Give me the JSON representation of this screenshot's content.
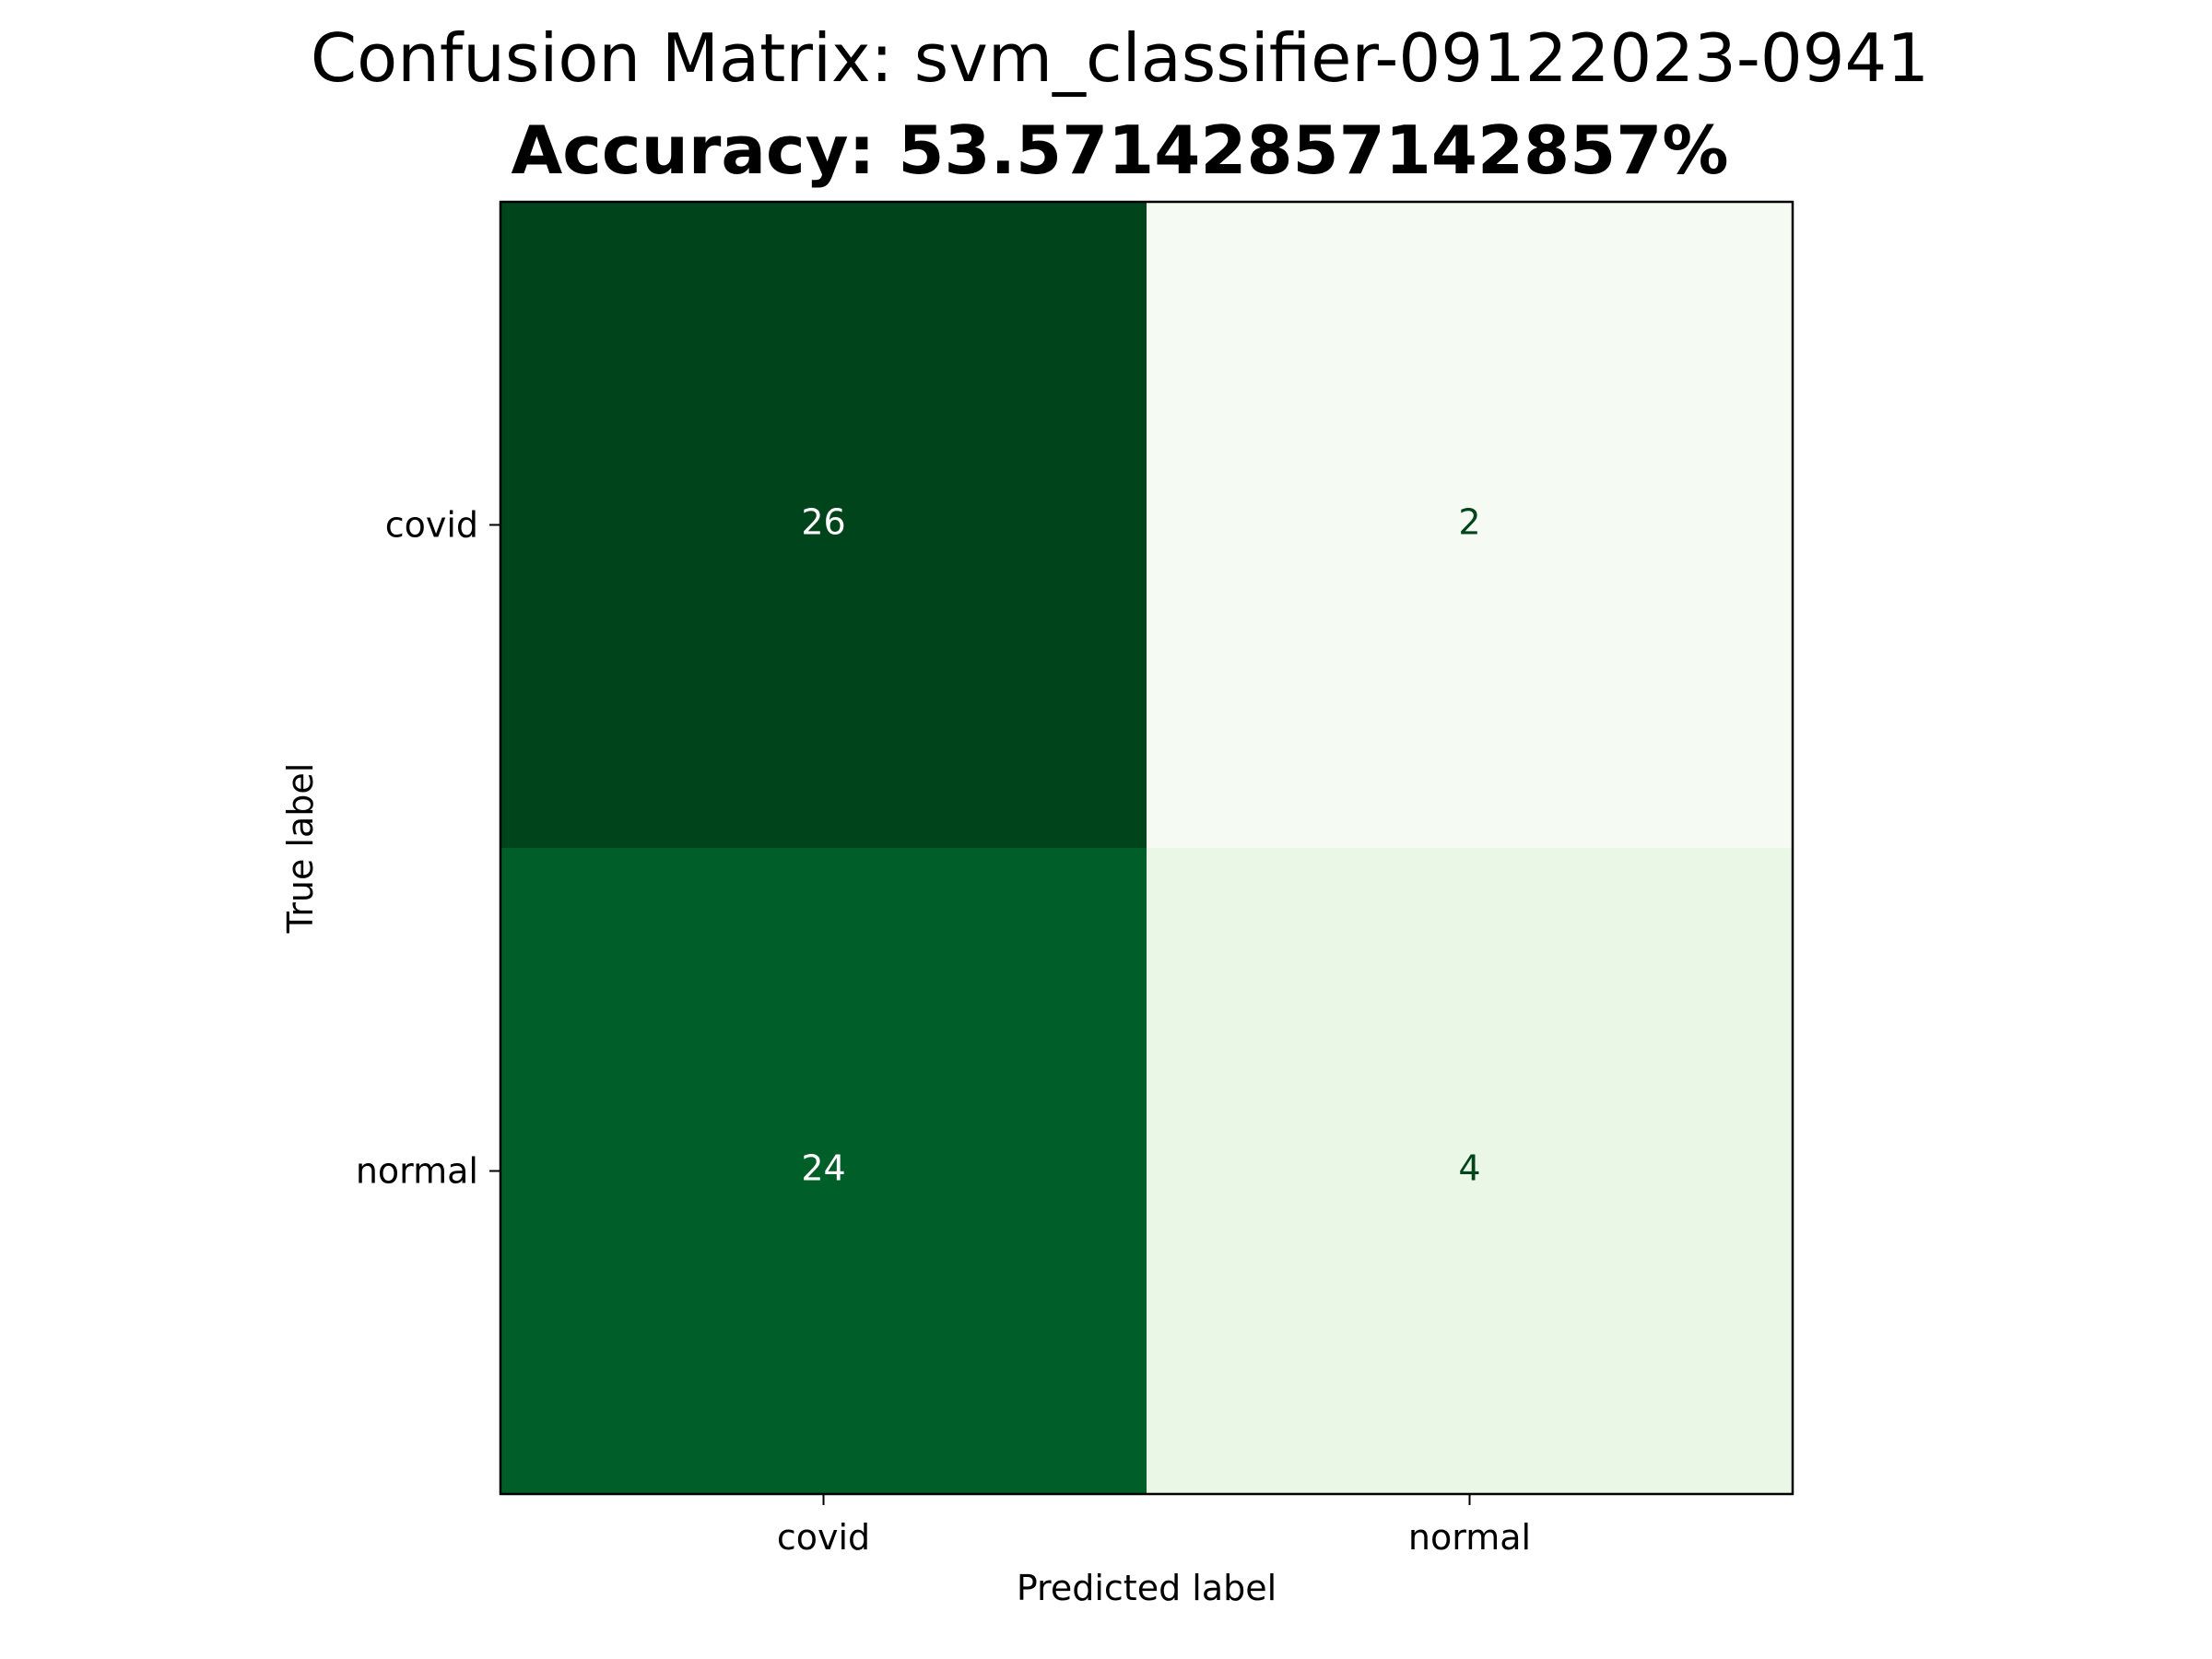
{
  "chart_data": {
    "type": "heatmap",
    "title": "Confusion Matrix: svm_classifier-09122023-0941",
    "subtitle": "Accuracy: 53.57142857142857%",
    "xlabel": "Predicted label",
    "ylabel": "True label",
    "x_categories": [
      "covid",
      "normal"
    ],
    "y_categories": [
      "covid",
      "normal"
    ],
    "values": [
      [
        26,
        2
      ],
      [
        24,
        4
      ]
    ],
    "colormap": "Greens",
    "colorbar": false,
    "grid": false
  },
  "colors": {
    "cell_colors": [
      [
        "#00441b",
        "#f5fbf3"
      ],
      [
        "#005f28",
        "#eaf6e6"
      ]
    ],
    "cell_text_colors": [
      [
        "#ffffff",
        "#00441b"
      ],
      [
        "#ffffff",
        "#00441b"
      ]
    ],
    "axis": "#000000",
    "text": "#000000"
  }
}
